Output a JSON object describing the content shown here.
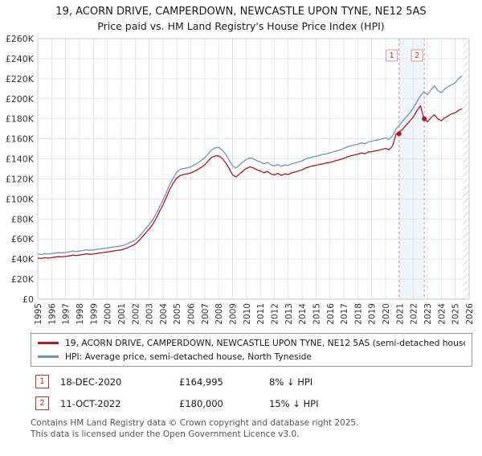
{
  "page": {
    "title_line1": "19, ACORN DRIVE, CAMPERDOWN, NEWCASTLE UPON TYNE, NE12 5AS",
    "title_line2": "Price paid vs. HM Land Registry's House Price Index (HPI)"
  },
  "legend": {
    "items": [
      {
        "label": "19, ACORN DRIVE, CAMPERDOWN, NEWCASTLE UPON TYNE, NE12 5AS (semi-detached house)",
        "color": "#b01820"
      },
      {
        "label": "HPI: Average price, semi-detached house, North Tyneside",
        "color": "#6f93bd"
      }
    ]
  },
  "annotations": [
    {
      "num": "1",
      "date": "18-DEC-2020",
      "price": "£164,995",
      "delta": "8% ↓ HPI"
    },
    {
      "num": "2",
      "date": "11-OCT-2022",
      "price": "£180,000",
      "delta": "15% ↓ HPI"
    }
  ],
  "footer": {
    "line1": "Contains HM Land Registry data © Crown copyright and database right 2025.",
    "line2": "This data is licensed under the Open Government Licence v3.0."
  },
  "chart_data": {
    "type": "line",
    "title": "19, ACORN DRIVE, CAMPERDOWN, NEWCASTLE UPON TYNE, NE12 5AS",
    "subtitle": "Price paid vs. HM Land Registry's House Price Index (HPI)",
    "xlabel": "",
    "ylabel": "",
    "grid": true,
    "legend_position": "bottom",
    "x_range": [
      1995,
      2026
    ],
    "y_range": [
      0,
      260000
    ],
    "y_tick_step": 20000,
    "y_ticks": [
      "£0",
      "£20K",
      "£40K",
      "£60K",
      "£80K",
      "£100K",
      "£120K",
      "£140K",
      "£160K",
      "£180K",
      "£200K",
      "£220K",
      "£240K",
      "£260K"
    ],
    "x_ticks": [
      "1995",
      "1996",
      "1997",
      "1998",
      "1999",
      "2000",
      "2001",
      "2002",
      "2003",
      "2004",
      "2005",
      "2006",
      "2007",
      "2008",
      "2009",
      "2010",
      "2011",
      "2012",
      "2013",
      "2014",
      "2015",
      "2016",
      "2017",
      "2018",
      "2019",
      "2020",
      "2021",
      "2022",
      "2023",
      "2024",
      "2025",
      "2026"
    ],
    "x_start": 1995,
    "x_step": 0.25,
    "y_unit": 1000,
    "shade_band": [
      2020.96,
      2022.78
    ],
    "hatch_start": 2025.55,
    "colors": {
      "property": "#b01820",
      "hpi": "#6f93bd",
      "band": "#e3ebf7",
      "sale_line": "#e09595",
      "grid": "#dcdcdc"
    },
    "series": [
      {
        "id": "property",
        "name": "19, ACORN DRIVE, CAMPERDOWN, NEWCASTLE UPON TYNE, NE12 5AS (semi-detached house)",
        "color": "#b01820",
        "y": [
          41,
          40.6,
          41.4,
          41,
          41.4,
          42,
          42.4,
          42.2,
          42.6,
          43.2,
          44,
          43.6,
          44,
          44.6,
          45.2,
          44.8,
          45,
          45.6,
          46.2,
          46.6,
          47,
          47.6,
          48.2,
          48.6,
          49.2,
          50.2,
          51.6,
          53.2,
          55,
          58,
          62,
          66,
          70,
          74.5,
          80.5,
          87.5,
          94,
          102,
          110,
          116,
          121,
          123.5,
          124.5,
          125,
          126,
          127.5,
          129.5,
          131.5,
          134,
          138,
          141.5,
          143,
          143,
          140.5,
          136,
          130.5,
          124,
          122,
          125,
          128,
          130.5,
          132,
          131,
          129,
          128,
          126,
          127.5,
          125,
          124,
          125.5,
          123.5,
          125,
          124.5,
          126,
          127,
          128,
          129,
          131,
          132,
          133,
          133.5,
          134.5,
          135,
          136,
          136.5,
          137.5,
          138.5,
          139.5,
          140.5,
          142,
          143,
          144,
          144.5,
          146,
          145,
          147,
          147,
          148,
          148.5,
          149.5,
          150.5,
          149,
          153,
          165,
          167,
          170,
          174,
          178,
          182,
          188,
          193,
          180,
          177,
          181,
          184,
          180,
          178,
          181,
          183,
          185,
          186,
          188.5,
          190
        ]
      },
      {
        "id": "hpi",
        "name": "HPI: Average price, semi-detached house, North Tyneside",
        "color": "#6f93bd",
        "y": [
          45,
          44.6,
          45.3,
          45,
          45.4,
          46,
          46.4,
          46.2,
          46.6,
          47.2,
          48,
          47.6,
          48,
          48.6,
          49.2,
          48.8,
          49,
          49.6,
          50.2,
          50.6,
          51,
          51.6,
          52.2,
          52.6,
          53.2,
          54.2,
          55.6,
          57.2,
          59,
          62,
          66,
          70.5,
          74.5,
          79,
          85,
          92,
          99,
          107,
          115,
          121,
          127,
          129.5,
          130.5,
          131,
          132,
          134,
          136,
          138.5,
          141,
          145,
          149,
          151,
          151.5,
          149,
          144.5,
          139,
          133,
          131,
          134,
          137,
          139.5,
          141,
          140,
          138,
          137,
          135,
          136.5,
          134,
          133,
          134.5,
          132.5,
          134,
          133.5,
          135,
          136,
          137,
          138,
          140,
          141,
          142,
          142.5,
          143.5,
          144.5,
          145,
          146,
          147,
          148,
          149,
          150.5,
          152,
          153,
          154,
          154.5,
          156,
          155,
          157,
          157.5,
          158.5,
          159,
          160,
          161,
          159.5,
          163,
          170,
          174,
          178,
          182,
          186,
          191,
          197,
          203,
          207,
          204,
          209,
          213,
          208,
          206,
          210,
          212,
          214,
          216,
          220,
          223
        ]
      }
    ],
    "sales": [
      {
        "label": "1",
        "x": 2020.96,
        "y": 164995
      },
      {
        "label": "2",
        "x": 2022.78,
        "y": 180000
      }
    ]
  }
}
